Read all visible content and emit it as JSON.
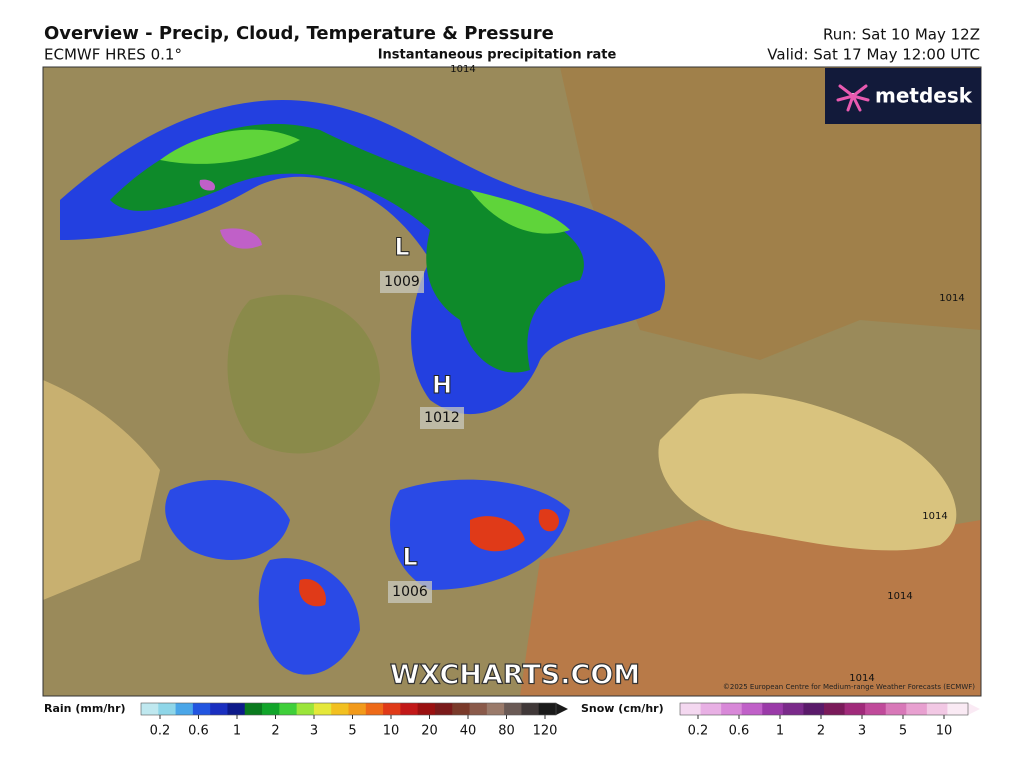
{
  "header": {
    "title": "Overview - Precip, Cloud, Temperature & Pressure",
    "model": "ECMWF HRES 0.1°",
    "subtitle": "Instantaneous precipitation rate",
    "run": "Run: Sat 10 May 12Z",
    "valid": "Valid: Sat 17 May 12:00 UTC"
  },
  "logo": "metdesk",
  "watermark": "WXCHARTS.COM",
  "copyright": "©2025 European Centre for Medium-range Weather Forecasts (ECMWF)",
  "pressure_centers": [
    {
      "letter": "L",
      "value": "1009"
    },
    {
      "letter": "H",
      "value": "1012"
    },
    {
      "letter": "L",
      "value": "1006"
    }
  ],
  "isobar_labels": [
    "1014",
    "1014",
    "1014",
    "1014",
    "1014"
  ],
  "rain_legend": {
    "label": "Rain (mm/hr)",
    "ticks": [
      0.2,
      0.6,
      1,
      2,
      3,
      5,
      10,
      20,
      40,
      80,
      120
    ],
    "colors": [
      "#bfe8ef",
      "#8fd6e8",
      "#4aa6e8",
      "#2255e0",
      "#1a2fc0",
      "#0d1a8a",
      "#0a7a1e",
      "#11a52a",
      "#3fcf3a",
      "#9be53a",
      "#e5e83a",
      "#f2c020",
      "#f29a1a",
      "#ee6a18",
      "#e03a18",
      "#c21818",
      "#9a1010",
      "#7a1a1a",
      "#7a3a2a",
      "#8a5a4a",
      "#9a7a6a",
      "#6a5a55",
      "#403838",
      "#1a1a1a"
    ]
  },
  "snow_legend": {
    "label": "Snow (cm/hr)",
    "ticks": [
      0.2,
      0.6,
      1,
      2,
      3,
      5,
      10
    ],
    "colors": [
      "#f4d8f0",
      "#e8b0e4",
      "#d888d8",
      "#c060c8",
      "#9a3aa8",
      "#7a2a8a",
      "#5a1a6a",
      "#7a1a5a",
      "#a02a7a",
      "#c04a9a",
      "#d878b8",
      "#e8a0d0",
      "#f2c8e4",
      "#faeaf4"
    ]
  }
}
